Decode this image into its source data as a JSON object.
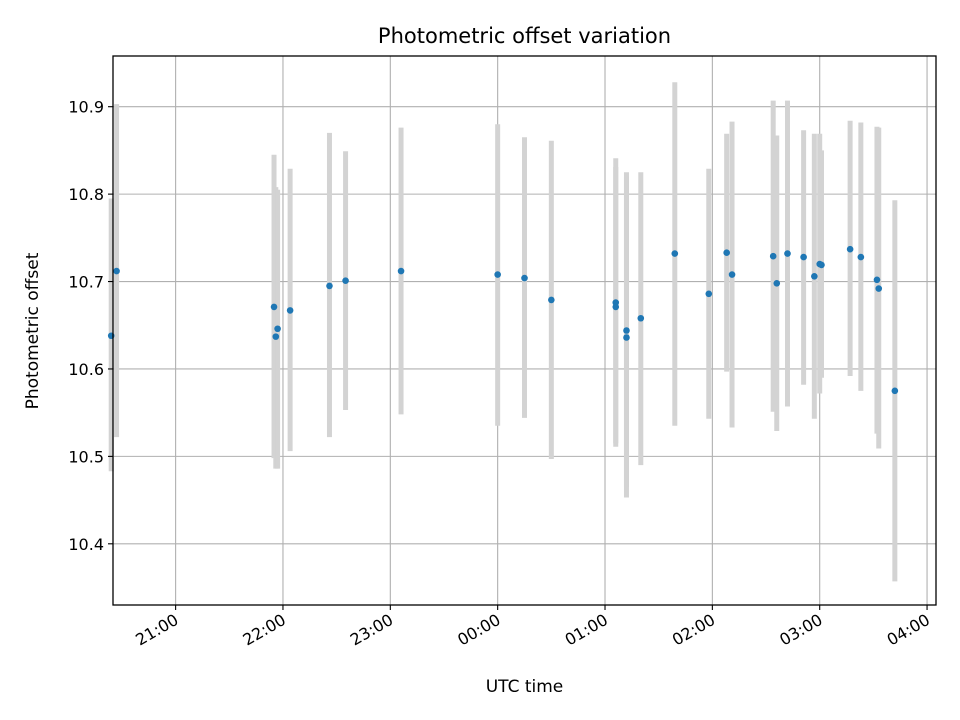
{
  "chart_data": {
    "type": "scatter",
    "title": "Photometric offset variation",
    "xlabel": "UTC time",
    "ylabel": "Photometric offset",
    "grid": true,
    "x_ticks": [
      "21:00",
      "22:00",
      "23:00",
      "00:00",
      "01:00",
      "02:00",
      "03:00",
      "04:00"
    ],
    "y_ticks": [
      "10.4",
      "10.5",
      "10.6",
      "10.7",
      "10.8",
      "10.9"
    ],
    "xlim": [
      "20:25",
      "04:05"
    ],
    "ylim": [
      10.33,
      10.958
    ],
    "colors": {
      "point": "#1f77b4",
      "errorbar": "#d3d3d3",
      "grid": "#b0b0b0"
    },
    "points": [
      {
        "t": "20:24",
        "y": 10.638,
        "ymin": 10.483,
        "ymax": 10.795
      },
      {
        "t": "20:27",
        "y": 10.712,
        "ymin": 10.522,
        "ymax": 10.903
      },
      {
        "t": "21:55",
        "y": 10.671,
        "ymin": 10.498,
        "ymax": 10.845
      },
      {
        "t": "21:56",
        "y": 10.637,
        "ymin": 10.486,
        "ymax": 10.808
      },
      {
        "t": "21:57",
        "y": 10.646,
        "ymin": 10.486,
        "ymax": 10.805
      },
      {
        "t": "22:04",
        "y": 10.667,
        "ymin": 10.506,
        "ymax": 10.829
      },
      {
        "t": "22:26",
        "y": 10.695,
        "ymin": 10.522,
        "ymax": 10.87
      },
      {
        "t": "22:35",
        "y": 10.701,
        "ymin": 10.553,
        "ymax": 10.849
      },
      {
        "t": "23:06",
        "y": 10.712,
        "ymin": 10.548,
        "ymax": 10.876
      },
      {
        "t": "00:00",
        "y": 10.708,
        "ymin": 10.535,
        "ymax": 10.88
      },
      {
        "t": "00:15",
        "y": 10.704,
        "ymin": 10.544,
        "ymax": 10.865
      },
      {
        "t": "00:30",
        "y": 10.679,
        "ymin": 10.497,
        "ymax": 10.861
      },
      {
        "t": "01:06",
        "y": 10.676,
        "ymin": 10.511,
        "ymax": 10.841
      },
      {
        "t": "01:06",
        "y": 10.671,
        "ymin": 10.515,
        "ymax": 10.831
      },
      {
        "t": "01:12",
        "y": 10.644,
        "ymin": 10.465,
        "ymax": 10.825
      },
      {
        "t": "01:12",
        "y": 10.636,
        "ymin": 10.453,
        "ymax": 10.82
      },
      {
        "t": "01:20",
        "y": 10.658,
        "ymin": 10.49,
        "ymax": 10.825
      },
      {
        "t": "01:39",
        "y": 10.732,
        "ymin": 10.535,
        "ymax": 10.928
      },
      {
        "t": "01:58",
        "y": 10.686,
        "ymin": 10.543,
        "ymax": 10.829
      },
      {
        "t": "02:08",
        "y": 10.733,
        "ymin": 10.597,
        "ymax": 10.869
      },
      {
        "t": "02:11",
        "y": 10.708,
        "ymin": 10.533,
        "ymax": 10.883
      },
      {
        "t": "02:34",
        "y": 10.729,
        "ymin": 10.551,
        "ymax": 10.907
      },
      {
        "t": "02:36",
        "y": 10.698,
        "ymin": 10.529,
        "ymax": 10.867
      },
      {
        "t": "02:42",
        "y": 10.732,
        "ymin": 10.557,
        "ymax": 10.907
      },
      {
        "t": "02:51",
        "y": 10.728,
        "ymin": 10.582,
        "ymax": 10.873
      },
      {
        "t": "02:57",
        "y": 10.706,
        "ymin": 10.543,
        "ymax": 10.869
      },
      {
        "t": "03:00",
        "y": 10.72,
        "ymin": 10.572,
        "ymax": 10.869
      },
      {
        "t": "03:01",
        "y": 10.719,
        "ymin": 10.59,
        "ymax": 10.85
      },
      {
        "t": "03:17",
        "y": 10.737,
        "ymin": 10.592,
        "ymax": 10.884
      },
      {
        "t": "03:23",
        "y": 10.728,
        "ymin": 10.575,
        "ymax": 10.882
      },
      {
        "t": "03:32",
        "y": 10.702,
        "ymin": 10.526,
        "ymax": 10.877
      },
      {
        "t": "03:33",
        "y": 10.692,
        "ymin": 10.509,
        "ymax": 10.876
      },
      {
        "t": "03:42",
        "y": 10.575,
        "ymin": 10.357,
        "ymax": 10.793
      }
    ]
  }
}
